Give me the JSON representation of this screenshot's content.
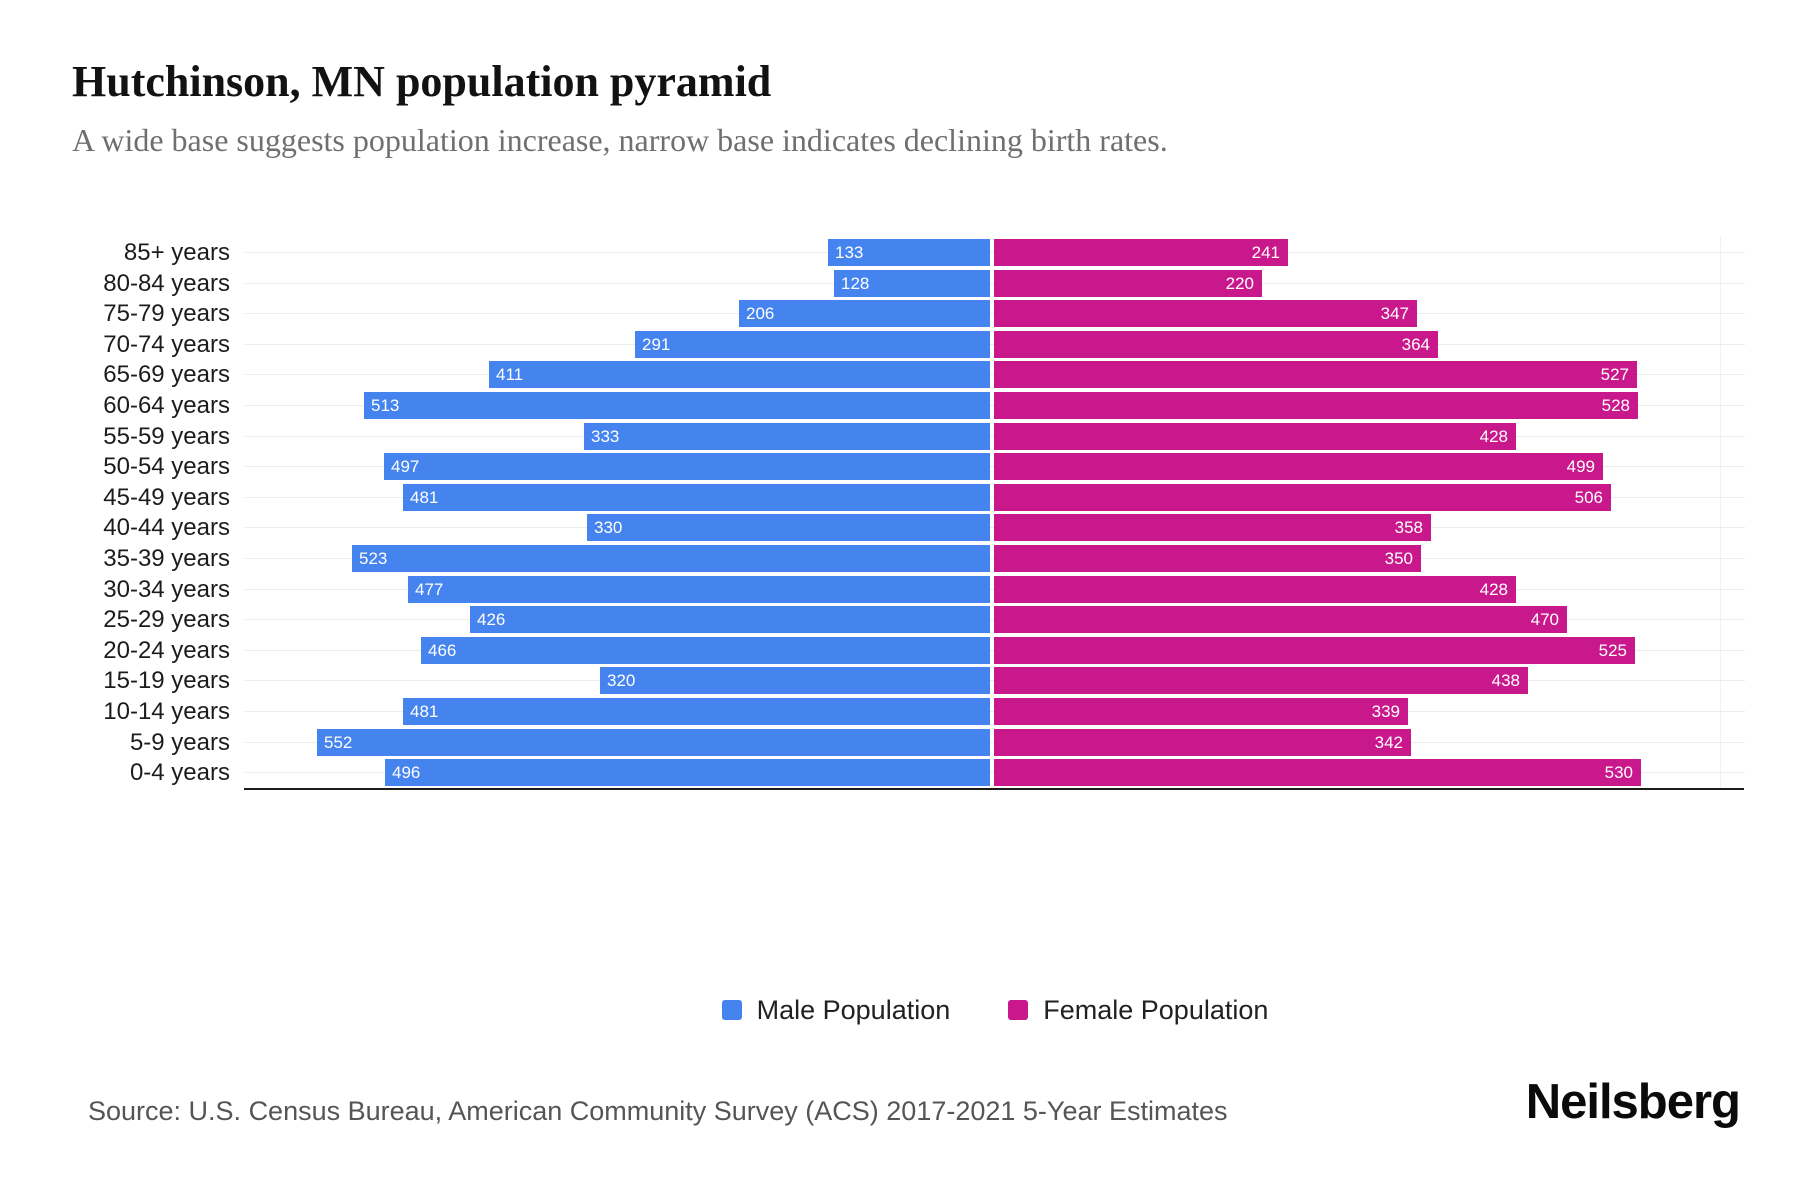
{
  "header": {
    "title": "Hutchinson, MN population pyramid",
    "subtitle": "A wide base suggests population increase, narrow base indicates declining birth rates."
  },
  "chart_data": {
    "type": "bar",
    "variant": "population-pyramid",
    "title": "Hutchinson, MN population pyramid",
    "xlabel": "",
    "ylabel": "",
    "grid": "horizontal",
    "legend_position": "bottom",
    "categories_top_to_bottom": [
      "85+ years",
      "80-84 years",
      "75-79 years",
      "70-74 years",
      "65-69 years",
      "60-64 years",
      "55-59 years",
      "50-54 years",
      "45-49 years",
      "40-44 years",
      "35-39 years",
      "30-34 years",
      "25-29 years",
      "20-24 years",
      "15-19 years",
      "10-14 years",
      "5-9 years",
      "0-4 years"
    ],
    "series": [
      {
        "name": "Male Population",
        "side": "left",
        "color": "#4583EE",
        "values": [
          133,
          128,
          206,
          291,
          411,
          513,
          333,
          497,
          481,
          330,
          523,
          477,
          426,
          466,
          320,
          481,
          552,
          496
        ]
      },
      {
        "name": "Female Population",
        "side": "right",
        "color": "#C9188C",
        "values": [
          241,
          220,
          347,
          364,
          527,
          528,
          428,
          499,
          506,
          358,
          350,
          428,
          470,
          525,
          438,
          339,
          342,
          530
        ]
      }
    ]
  },
  "legend": {
    "items": [
      {
        "label": "Male Population",
        "color": "#4583EE"
      },
      {
        "label": "Female Population",
        "color": "#C9188C"
      }
    ]
  },
  "footer": {
    "source": "Source: U.S. Census Bureau, American Community Survey (ACS) 2017-2021 5-Year Estimates",
    "brand": "Neilsberg"
  }
}
